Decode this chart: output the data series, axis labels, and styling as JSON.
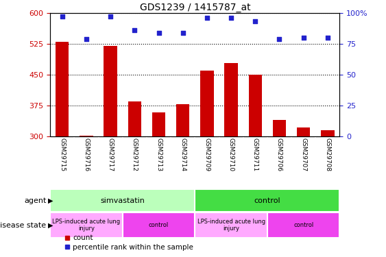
{
  "title": "GDS1239 / 1415787_at",
  "samples": [
    "GSM29715",
    "GSM29716",
    "GSM29717",
    "GSM29712",
    "GSM29713",
    "GSM29714",
    "GSM29709",
    "GSM29710",
    "GSM29711",
    "GSM29706",
    "GSM29707",
    "GSM29708"
  ],
  "counts": [
    530,
    302,
    520,
    385,
    358,
    378,
    460,
    478,
    450,
    340,
    322,
    315
  ],
  "percentiles": [
    97,
    79,
    97,
    86,
    84,
    84,
    96,
    96,
    93,
    79,
    80,
    80
  ],
  "ylim_left": [
    300,
    600
  ],
  "ylim_right": [
    0,
    100
  ],
  "yticks_left": [
    300,
    375,
    450,
    525,
    600
  ],
  "yticks_right": [
    0,
    25,
    50,
    75,
    100
  ],
  "bar_color": "#cc0000",
  "dot_color": "#2222cc",
  "agent_groups": [
    {
      "label": "simvastatin",
      "start": 0,
      "end": 6,
      "color": "#bbffbb"
    },
    {
      "label": "control",
      "start": 6,
      "end": 12,
      "color": "#44dd44"
    }
  ],
  "disease_groups": [
    {
      "label": "LPS-induced acute lung\ninjury",
      "start": 0,
      "end": 3,
      "color": "#ffaaff"
    },
    {
      "label": "control",
      "start": 3,
      "end": 6,
      "color": "#ee44ee"
    },
    {
      "label": "LPS-induced acute lung\ninjury",
      "start": 6,
      "end": 9,
      "color": "#ffaaff"
    },
    {
      "label": "control",
      "start": 9,
      "end": 12,
      "color": "#ee44ee"
    }
  ],
  "agent_label": "agent",
  "disease_label": "disease state",
  "legend_count_label": "count",
  "legend_pct_label": "percentile rank within the sample",
  "background_color": "#ffffff",
  "xlabel_bg": "#cccccc",
  "tick_label_color_left": "#cc0000",
  "tick_label_color_right": "#2222cc"
}
